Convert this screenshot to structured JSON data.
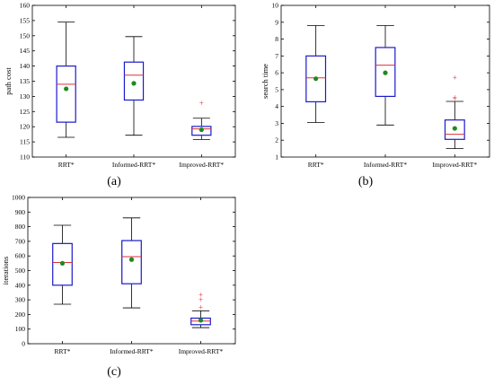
{
  "chart_data": [
    {
      "type": "box",
      "panel_label": "(a)",
      "ylabel": "path cost",
      "ylim": [
        110,
        160
      ],
      "yticks": [
        110,
        115,
        120,
        125,
        130,
        135,
        140,
        145,
        150,
        155,
        160
      ],
      "categories": [
        "RRT*",
        "Informed-RRT*",
        "Improved-RRT*"
      ],
      "boxes": [
        {
          "min": 116.5,
          "q1": 121.5,
          "median": 134,
          "q3": 140,
          "max": 154.5,
          "mean": 132.5,
          "outliers": []
        },
        {
          "min": 117.2,
          "q1": 128.8,
          "median": 137,
          "q3": 141.3,
          "max": 149.7,
          "mean": 134.3,
          "outliers": []
        },
        {
          "min": 115.8,
          "q1": 117.2,
          "median": 119.3,
          "q3": 120.1,
          "max": 122.8,
          "mean": 119,
          "outliers": [
            127.8
          ]
        }
      ]
    },
    {
      "type": "box",
      "panel_label": "(b)",
      "ylabel": "search time",
      "ylim": [
        1,
        10
      ],
      "yticks": [
        1,
        2,
        3,
        4,
        5,
        6,
        7,
        8,
        9,
        10
      ],
      "categories": [
        "RRT*",
        "Informed-RRT*",
        "Improved-RRT*"
      ],
      "boxes": [
        {
          "min": 3.05,
          "q1": 4.28,
          "median": 5.7,
          "q3": 7.0,
          "max": 8.8,
          "mean": 5.65,
          "outliers": []
        },
        {
          "min": 2.9,
          "q1": 4.6,
          "median": 6.45,
          "q3": 7.5,
          "max": 8.8,
          "mean": 6.0,
          "outliers": []
        },
        {
          "min": 1.5,
          "q1": 2.05,
          "median": 2.35,
          "q3": 3.2,
          "max": 4.3,
          "mean": 2.7,
          "outliers": [
            4.45,
            4.55,
            5.7
          ]
        }
      ]
    },
    {
      "type": "box",
      "panel_label": "(c)",
      "ylabel": "iterations",
      "ylim": [
        0,
        1000
      ],
      "yticks": [
        0,
        100,
        200,
        300,
        400,
        500,
        600,
        700,
        800,
        900,
        1000
      ],
      "categories": [
        "RRT*",
        "Informed-RRT*",
        "Improved-RRT*"
      ],
      "boxes": [
        {
          "min": 270,
          "q1": 400,
          "median": 555,
          "q3": 685,
          "max": 810,
          "mean": 550,
          "outliers": []
        },
        {
          "min": 245,
          "q1": 410,
          "median": 595,
          "q3": 705,
          "max": 860,
          "mean": 575,
          "outliers": []
        },
        {
          "min": 110,
          "q1": 130,
          "median": 155,
          "q3": 175,
          "max": 225,
          "mean": 160,
          "outliers": [
            250,
            300,
            335
          ]
        }
      ]
    }
  ]
}
